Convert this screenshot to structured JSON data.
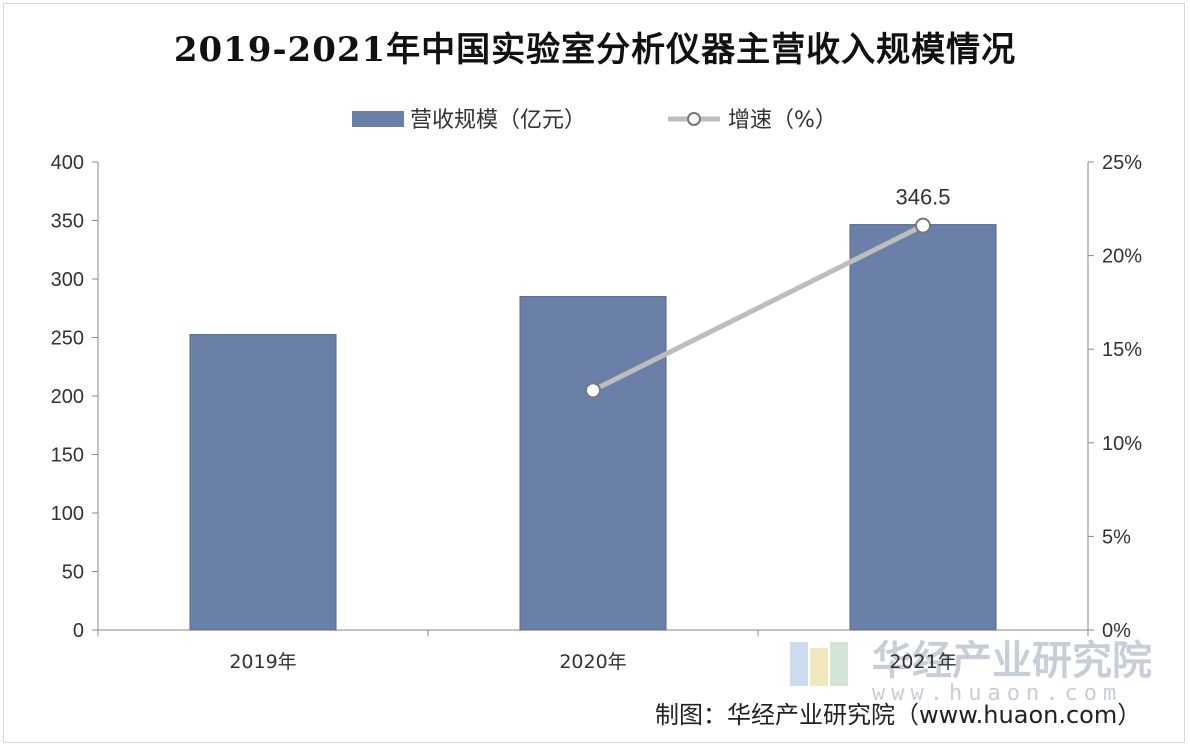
{
  "title": "2019-2021年中国实验室分析仪器主营收入规模情况",
  "credit": "制图：华经产业研究院（www.huaon.com）",
  "watermark": {
    "name": "华经产业研究院",
    "url": "www.huaon.com"
  },
  "colors": {
    "bar": "#6b80a8",
    "bar_edge": "#55688e",
    "line": "#bdbdbd",
    "marker": "#ffffff"
  },
  "chart_data": {
    "type": "bar",
    "categories": [
      "2019年",
      "2020年",
      "2021年"
    ],
    "series": [
      {
        "name": "营收规模（亿元）",
        "type": "bar",
        "axis": "left",
        "values": [
          252.5,
          285.0,
          346.5
        ]
      },
      {
        "name": "增速（%）",
        "type": "line",
        "axis": "right",
        "values": [
          null,
          12.8,
          21.6
        ]
      }
    ],
    "data_labels": [
      {
        "series": 0,
        "index": 2,
        "text": "346.5"
      }
    ],
    "y_left": {
      "min": 0,
      "max": 400,
      "ticks": [
        "0",
        "50",
        "100",
        "150",
        "200",
        "250",
        "300",
        "350",
        "400"
      ]
    },
    "y_right": {
      "min": 0,
      "max": 25,
      "ticks": [
        "0%",
        "5%",
        "10%",
        "15%",
        "20%",
        "25%"
      ]
    },
    "legend_position": "top-center",
    "grid": false
  }
}
